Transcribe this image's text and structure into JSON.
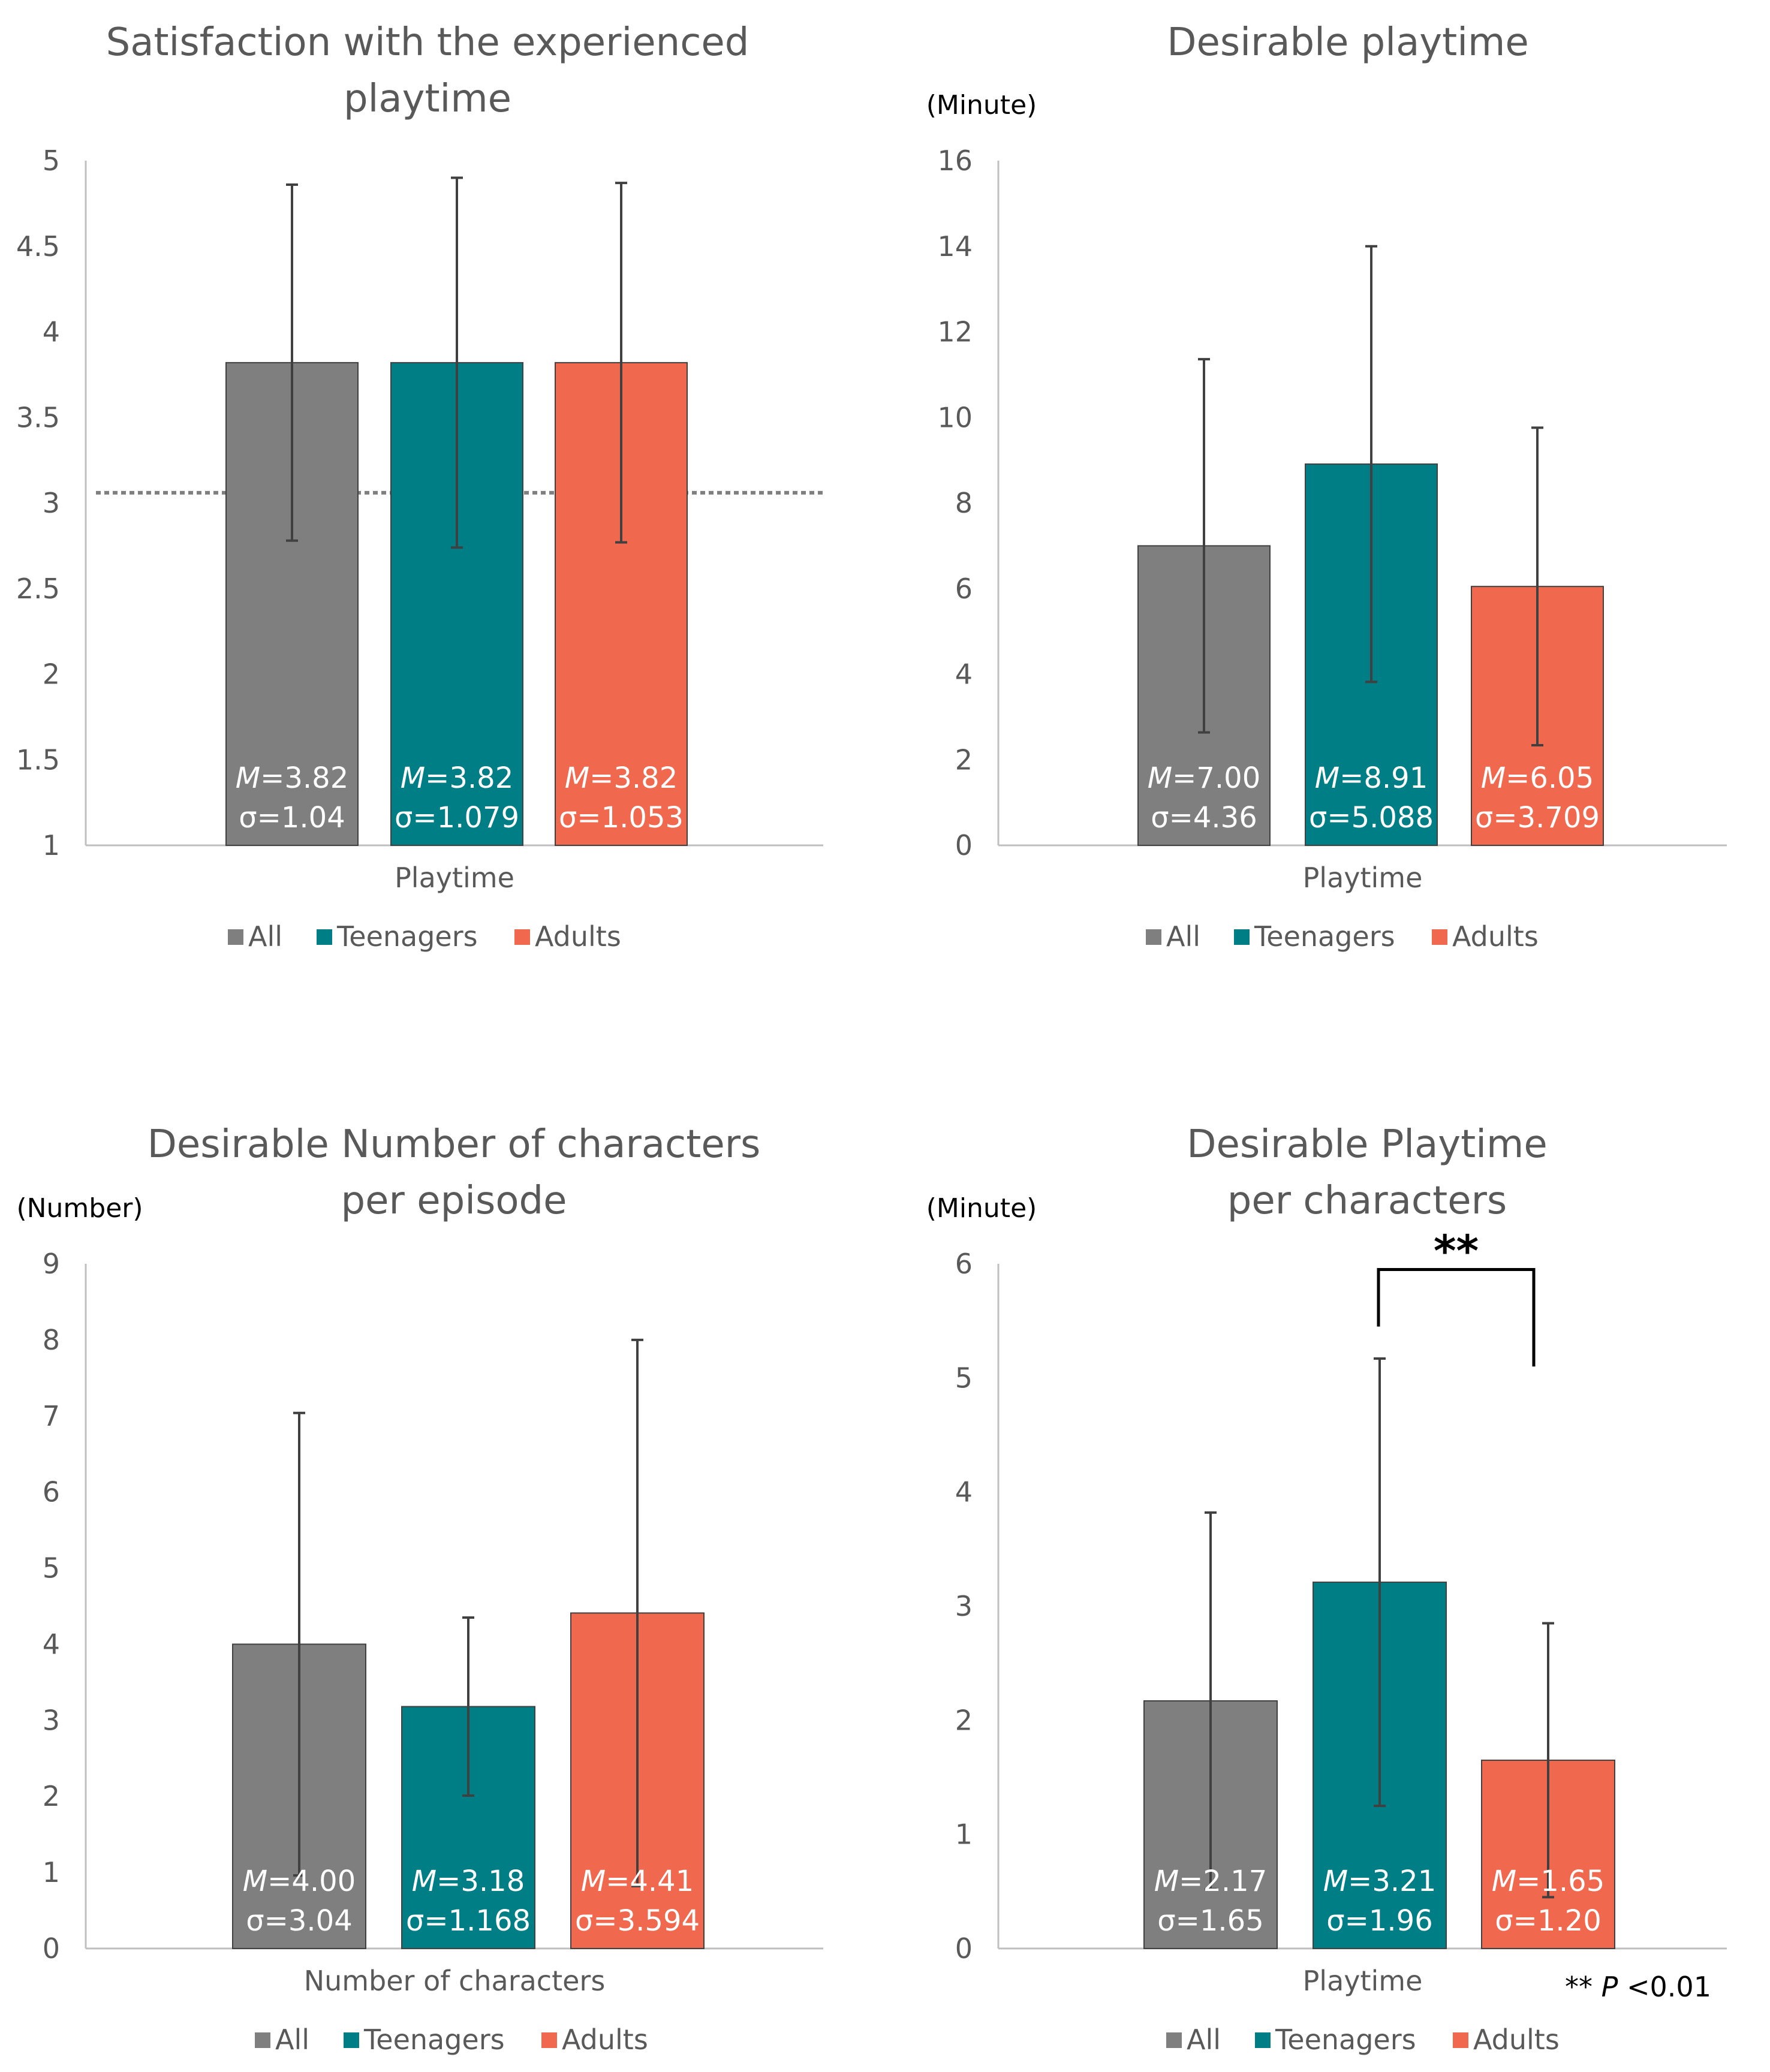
{
  "colors": {
    "all": "#7f7f7f",
    "teenagers": "#007e85",
    "adults": "#f0694f",
    "axis": "#bfbfbf",
    "text": "#595959",
    "errorbar": "#404040"
  },
  "chart_data": [
    {
      "type": "bar",
      "title_lines": [
        "Satisfaction with the experienced",
        "playtime"
      ],
      "unit_label": "",
      "category": "Playtime",
      "ylim": [
        1,
        5
      ],
      "yticks": [
        "1",
        "1.5",
        "2",
        "2.5",
        "3",
        "3.5",
        "4",
        "4.5",
        "5"
      ],
      "ytick_values": [
        1,
        1.5,
        2,
        2.5,
        3,
        3.5,
        4,
        4.5,
        5
      ],
      "reference_line": 3.06,
      "series": [
        {
          "name": "All",
          "value": 3.82,
          "err_low": 2.78,
          "err_high": 4.86,
          "label_m": "=3.82",
          "label_s": "σ=1.04"
        },
        {
          "name": "Teenagers",
          "value": 3.82,
          "err_low": 2.74,
          "err_high": 4.9,
          "label_m": "=3.82",
          "label_s": "σ=1.079"
        },
        {
          "name": "Adults",
          "value": 3.82,
          "err_low": 2.77,
          "err_high": 4.87,
          "label_m": "=3.82",
          "label_s": "σ=1.053"
        }
      ]
    },
    {
      "type": "bar",
      "title_lines": [
        "Desirable playtime"
      ],
      "unit_label": "(Minute)",
      "category": "Playtime",
      "ylim": [
        0,
        16
      ],
      "yticks": [
        "0",
        "2",
        "4",
        "6",
        "8",
        "10",
        "12",
        "14",
        "16"
      ],
      "ytick_values": [
        0,
        2,
        4,
        6,
        8,
        10,
        12,
        14,
        16
      ],
      "series": [
        {
          "name": "All",
          "value": 7.0,
          "err_low": 2.64,
          "err_high": 11.36,
          "label_m": "=7.00",
          "label_s": "σ=4.36"
        },
        {
          "name": "Teenagers",
          "value": 8.91,
          "err_low": 3.82,
          "err_high": 14.0,
          "label_m": "=8.91",
          "label_s": "σ=5.088"
        },
        {
          "name": "Adults",
          "value": 6.05,
          "err_low": 2.34,
          "err_high": 9.76,
          "label_m": "=6.05",
          "label_s": "σ=3.709"
        }
      ]
    },
    {
      "type": "bar",
      "title_lines": [
        "Desirable Number of characters",
        "per episode"
      ],
      "unit_label": "(Number)",
      "category": "Number of characters",
      "ylim": [
        0,
        9
      ],
      "yticks": [
        "0",
        "1",
        "2",
        "3",
        "4",
        "5",
        "6",
        "7",
        "8",
        "9"
      ],
      "ytick_values": [
        0,
        1,
        2,
        3,
        4,
        5,
        6,
        7,
        8,
        9
      ],
      "series": [
        {
          "name": "All",
          "value": 4.0,
          "err_low": 0.96,
          "err_high": 7.04,
          "label_m": "=4.00",
          "label_s": "σ=3.04"
        },
        {
          "name": "Teenagers",
          "value": 3.18,
          "err_low": 2.01,
          "err_high": 4.35,
          "label_m": "=3.18",
          "label_s": "σ=1.168"
        },
        {
          "name": "Adults",
          "value": 4.41,
          "err_low": 0.82,
          "err_high": 8.0,
          "label_m": "=4.41",
          "label_s": "σ=3.594"
        }
      ]
    },
    {
      "type": "bar",
      "title_lines": [
        "Desirable Playtime",
        "per characters"
      ],
      "unit_label": "(Minute)",
      "category": "Playtime",
      "ylim": [
        0,
        6
      ],
      "yticks": [
        "0",
        "1",
        "2",
        "3",
        "4",
        "5",
        "6"
      ],
      "ytick_values": [
        0,
        1,
        2,
        3,
        4,
        5,
        6
      ],
      "significance": {
        "marker": "**",
        "between": [
          1,
          2
        ],
        "bracket_value": 5.95,
        "left_end": 5.45,
        "right_end": 5.1
      },
      "footnote": {
        "stars": "**",
        "p": "P",
        "rest": " <0.01"
      },
      "series": [
        {
          "name": "All",
          "value": 2.17,
          "err_low": 0.52,
          "err_high": 3.82,
          "label_m": "=2.17",
          "label_s": "σ=1.65"
        },
        {
          "name": "Teenagers",
          "value": 3.21,
          "err_low": 1.25,
          "err_high": 5.17,
          "label_m": "=3.21",
          "label_s": "σ=1.96"
        },
        {
          "name": "Adults",
          "value": 1.65,
          "err_low": 0.45,
          "err_high": 2.85,
          "label_m": "=1.65",
          "label_s": "σ=1.20"
        }
      ]
    }
  ],
  "legend": {
    "items": [
      "All",
      "Teenagers",
      "Adults"
    ]
  },
  "mean_symbol": "M"
}
